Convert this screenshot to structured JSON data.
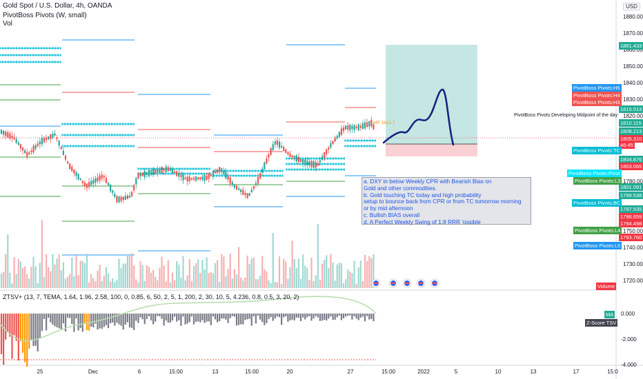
{
  "header": {
    "title": "Gold Spot / U.S. Dollar, 4h, OANDA",
    "indicator1": "PivotBoss Pivots (W, small)",
    "indicator2": "Vol",
    "sub_indicator": "ZTSV+ (13, 7, TEMA, 1.64, 1.96, 2.58, 100, 0, 0.85, 6, 50, 2, 5, 1, 200, 2, 30, 10, 5, 4.236, 0.8, 0.5, 3, 20, 2)"
  },
  "currency": "USD",
  "price_axis": [
    "1880.00",
    "1870.000",
    "1860.000",
    "1850.000",
    "1840.000",
    "1830.000",
    "1820.000",
    "1780.000",
    "1750.000",
    "1740.000",
    "1730.000",
    "1720.000"
  ],
  "sub_axis": [
    "0.000",
    "-2.000",
    "-4.000"
  ],
  "price_tags": [
    {
      "text": "1861.433",
      "color": "#22ab94"
    },
    {
      "text": "1815.513",
      "color": "#22ab94"
    },
    {
      "text": "1810.115",
      "color": "#22ab94"
    },
    {
      "text": "1808.213",
      "color": "#22ab94"
    },
    {
      "text": "1805.310",
      "color": "#f23645"
    },
    {
      "text": "46:45",
      "color": "#f23645"
    },
    {
      "text": "1804.876",
      "color": "#22ab94"
    },
    {
      "text": "1803.065",
      "color": "#f23645"
    },
    {
      "text": "1801.091",
      "color": "#22ab94"
    },
    {
      "text": "1799.538",
      "color": "#22ab94"
    },
    {
      "text": "1797.535",
      "color": "#22ab94"
    },
    {
      "text": "1796.659",
      "color": "#f23645"
    },
    {
      "text": "1794.498",
      "color": "#f23645"
    },
    {
      "text": "1793.760",
      "color": "#f23645"
    }
  ],
  "pivot_tags": [
    {
      "text": "PivotBoss Pivots:H5",
      "color": "#2196f3"
    },
    {
      "text": "PivotBoss Pivots:H4",
      "color": "#ef5350"
    },
    {
      "text": "PivotBoss Pivots:H3",
      "color": "#ef5350"
    },
    {
      "text": "PivotBoss Pivots:TC",
      "color": "#00bcd4"
    },
    {
      "text": "PivotBoss Pivots:Pivot",
      "color": "#00e5ff"
    },
    {
      "text": "PivotBoss Pivots:L3",
      "color": "#43a047"
    },
    {
      "text": "PivotBoss Pivots:BC",
      "color": "#00bcd4"
    },
    {
      "text": "PivotBoss Pivots:L4",
      "color": "#43a047"
    },
    {
      "text": "PivotBoss Pivots:L5",
      "color": "#2196f3"
    }
  ],
  "developing_label": "PivotBoss Pivots:Developing Midpoint of the day",
  "volume_label": "Volume",
  "ma_label": "MA",
  "zscore_label": "Z-Score TSV",
  "mp_label": "MP 1812.7",
  "note_lines": [
    "a. DXY in below Weekly CPR with Bearish Bias on",
    "  Gold and other commodities.",
    "b. Gold touching TC today and high probability",
    "  setup to bounce back from CPR  or from TC tomorrow morning",
    "or by mid afternoon",
    "c. Bullish BIAS overall",
    "d. A Perfect Weekly Swing of 1:8 RRR 'ossible"
  ],
  "x_axis": [
    "25",
    "Dec",
    "6",
    "15:00",
    "13",
    "15:00",
    "20",
    "27",
    "15:00",
    "2022",
    "5",
    "10",
    "13",
    "17",
    "15:0"
  ],
  "colors": {
    "up": "#26a69a",
    "down": "#ef5350",
    "accent": "#2962ff",
    "forecast": "#1a237e"
  }
}
